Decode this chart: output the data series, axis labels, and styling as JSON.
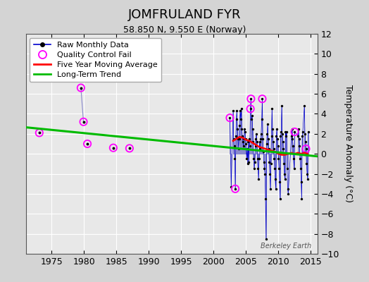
{
  "title": "JOMFRULAND FYR",
  "subtitle": "58.850 N, 9.550 E (Norway)",
  "ylabel": "Temperature Anomaly (°C)",
  "watermark": "Berkeley Earth",
  "xlim": [
    1971,
    2016
  ],
  "ylim": [
    -10,
    12
  ],
  "yticks": [
    -10,
    -8,
    -6,
    -4,
    -2,
    0,
    2,
    4,
    6,
    8,
    10,
    12
  ],
  "xticks": [
    1975,
    1980,
    1985,
    1990,
    1995,
    2000,
    2005,
    2010,
    2015
  ],
  "fig_bg": "#d4d4d4",
  "plot_bg": "#e8e8e8",
  "raw_line_color": "#0000cc",
  "raw_marker_color": "#000000",
  "stem_color": "#8888cc",
  "qc_fail_color": "#ff00ff",
  "moving_avg_color": "#ff0000",
  "trend_color": "#00bb00",
  "legend_entries": [
    "Raw Monthly Data",
    "Quality Control Fail",
    "Five Year Moving Average",
    "Long-Term Trend"
  ],
  "raw_monthly_data": [
    [
      1973.08,
      2.1
    ],
    [
      1979.5,
      6.6
    ],
    [
      1979.9,
      3.2
    ],
    [
      1980.5,
      1.0
    ],
    [
      1984.5,
      0.6
    ],
    [
      1987.0,
      0.55
    ],
    [
      2002.5,
      3.6
    ],
    [
      2002.7,
      -3.3
    ],
    [
      2003.0,
      4.3
    ],
    [
      2003.08,
      1.5
    ],
    [
      2003.17,
      0.8
    ],
    [
      2003.25,
      -0.5
    ],
    [
      2003.33,
      -3.5
    ],
    [
      2003.42,
      1.8
    ],
    [
      2003.5,
      3.5
    ],
    [
      2003.58,
      4.3
    ],
    [
      2003.67,
      2.5
    ],
    [
      2003.75,
      1.5
    ],
    [
      2003.83,
      0.5
    ],
    [
      2003.92,
      1.5
    ],
    [
      2004.0,
      2.8
    ],
    [
      2004.08,
      4.3
    ],
    [
      2004.17,
      3.5
    ],
    [
      2004.25,
      4.5
    ],
    [
      2004.33,
      2.5
    ],
    [
      2004.42,
      1.8
    ],
    [
      2004.5,
      1.2
    ],
    [
      2004.58,
      0.8
    ],
    [
      2004.67,
      1.5
    ],
    [
      2004.75,
      2.5
    ],
    [
      2004.83,
      2.2
    ],
    [
      2004.92,
      1.5
    ],
    [
      2005.0,
      1.0
    ],
    [
      2005.08,
      -0.5
    ],
    [
      2005.17,
      0.5
    ],
    [
      2005.25,
      -1.0
    ],
    [
      2005.33,
      1.2
    ],
    [
      2005.42,
      -0.8
    ],
    [
      2005.5,
      1.5
    ],
    [
      2005.58,
      0.8
    ],
    [
      2005.67,
      4.5
    ],
    [
      2005.75,
      5.5
    ],
    [
      2005.83,
      3.5
    ],
    [
      2005.92,
      3.8
    ],
    [
      2006.0,
      2.5
    ],
    [
      2006.08,
      1.2
    ],
    [
      2006.17,
      -0.5
    ],
    [
      2006.25,
      -1.5
    ],
    [
      2006.33,
      -0.8
    ],
    [
      2006.42,
      0.8
    ],
    [
      2006.5,
      1.5
    ],
    [
      2006.58,
      2.0
    ],
    [
      2006.67,
      1.2
    ],
    [
      2006.75,
      -0.5
    ],
    [
      2006.83,
      -1.5
    ],
    [
      2006.92,
      -2.5
    ],
    [
      2007.0,
      -0.5
    ],
    [
      2007.08,
      1.2
    ],
    [
      2007.17,
      0.5
    ],
    [
      2007.25,
      1.5
    ],
    [
      2007.33,
      2.0
    ],
    [
      2007.42,
      3.5
    ],
    [
      2007.5,
      5.5
    ],
    [
      2007.58,
      1.5
    ],
    [
      2007.67,
      0.2
    ],
    [
      2007.75,
      -0.8
    ],
    [
      2007.83,
      -1.5
    ],
    [
      2007.92,
      -2.0
    ],
    [
      2008.0,
      -4.5
    ],
    [
      2008.08,
      -8.5
    ],
    [
      2008.17,
      1.0
    ],
    [
      2008.25,
      2.0
    ],
    [
      2008.33,
      3.0
    ],
    [
      2008.42,
      1.5
    ],
    [
      2008.5,
      0.5
    ],
    [
      2008.58,
      -0.8
    ],
    [
      2008.67,
      -2.0
    ],
    [
      2008.75,
      -3.5
    ],
    [
      2008.83,
      -1.0
    ],
    [
      2008.92,
      1.8
    ],
    [
      2009.0,
      4.5
    ],
    [
      2009.08,
      2.5
    ],
    [
      2009.17,
      1.2
    ],
    [
      2009.25,
      0.5
    ],
    [
      2009.33,
      -0.5
    ],
    [
      2009.42,
      -1.5
    ],
    [
      2009.5,
      -2.5
    ],
    [
      2009.58,
      -3.5
    ],
    [
      2009.67,
      1.8
    ],
    [
      2009.75,
      2.5
    ],
    [
      2009.83,
      1.5
    ],
    [
      2009.92,
      0.8
    ],
    [
      2010.0,
      -0.5
    ],
    [
      2010.08,
      -1.5
    ],
    [
      2010.17,
      -2.8
    ],
    [
      2010.25,
      -4.5
    ],
    [
      2010.33,
      1.8
    ],
    [
      2010.42,
      2.2
    ],
    [
      2010.5,
      4.8
    ],
    [
      2010.58,
      2.0
    ],
    [
      2010.67,
      1.2
    ],
    [
      2010.75,
      0.5
    ],
    [
      2010.83,
      -1.0
    ],
    [
      2010.92,
      -2.0
    ],
    [
      2011.0,
      -2.5
    ],
    [
      2011.08,
      2.2
    ],
    [
      2011.17,
      1.8
    ],
    [
      2011.25,
      2.2
    ],
    [
      2011.33,
      -1.5
    ],
    [
      2011.42,
      -3.5
    ],
    [
      2011.5,
      -4.0
    ],
    [
      2012.0,
      1.8
    ],
    [
      2012.08,
      2.5
    ],
    [
      2012.17,
      1.5
    ],
    [
      2012.25,
      0.8
    ],
    [
      2012.33,
      -0.5
    ],
    [
      2012.42,
      -1.5
    ],
    [
      2012.5,
      2.2
    ],
    [
      2013.0,
      1.8
    ],
    [
      2013.08,
      2.5
    ],
    [
      2013.17,
      1.5
    ],
    [
      2013.25,
      0.8
    ],
    [
      2013.33,
      -0.5
    ],
    [
      2013.42,
      -1.5
    ],
    [
      2013.5,
      -2.8
    ],
    [
      2013.58,
      -4.5
    ],
    [
      2013.67,
      1.8
    ],
    [
      2013.75,
      2.2
    ],
    [
      2014.0,
      4.8
    ],
    [
      2014.08,
      2.0
    ],
    [
      2014.17,
      1.2
    ],
    [
      2014.25,
      0.5
    ],
    [
      2014.33,
      -1.0
    ],
    [
      2014.42,
      -2.0
    ],
    [
      2014.5,
      -2.5
    ],
    [
      2014.58,
      2.2
    ]
  ],
  "qc_fail_points": [
    [
      1973.08,
      2.1
    ],
    [
      1979.5,
      6.6
    ],
    [
      1979.9,
      3.2
    ],
    [
      1980.5,
      1.0
    ],
    [
      1984.5,
      0.6
    ],
    [
      1987.0,
      0.55
    ],
    [
      2002.5,
      3.6
    ],
    [
      2003.33,
      -3.5
    ],
    [
      2005.75,
      5.5
    ],
    [
      2005.67,
      4.5
    ],
    [
      2007.5,
      5.5
    ],
    [
      2014.25,
      0.5
    ],
    [
      2012.5,
      2.2
    ]
  ],
  "sparse_segments": [
    [
      [
        1979.5,
        6.6
      ],
      [
        1979.9,
        3.2
      ]
    ]
  ],
  "moving_avg": [
    [
      2003.0,
      1.3
    ],
    [
      2003.5,
      1.5
    ],
    [
      2004.0,
      1.7
    ],
    [
      2004.5,
      1.6
    ],
    [
      2005.0,
      1.4
    ],
    [
      2005.5,
      1.3
    ],
    [
      2006.0,
      1.1
    ],
    [
      2006.5,
      0.9
    ],
    [
      2007.0,
      0.7
    ],
    [
      2007.5,
      0.6
    ],
    [
      2008.0,
      0.5
    ],
    [
      2008.5,
      0.4
    ],
    [
      2009.0,
      0.3
    ],
    [
      2009.5,
      0.2
    ],
    [
      2010.0,
      0.0
    ],
    [
      2010.5,
      -0.1
    ],
    [
      2011.0,
      -0.1
    ],
    [
      2011.5,
      0.0
    ],
    [
      2012.0,
      0.1
    ],
    [
      2012.5,
      0.0
    ],
    [
      2013.0,
      0.1
    ],
    [
      2013.5,
      0.0
    ],
    [
      2014.0,
      0.1
    ],
    [
      2014.5,
      0.0
    ]
  ],
  "trend_x": [
    1971,
    2016
  ],
  "trend_y": [
    2.65,
    -0.25
  ]
}
